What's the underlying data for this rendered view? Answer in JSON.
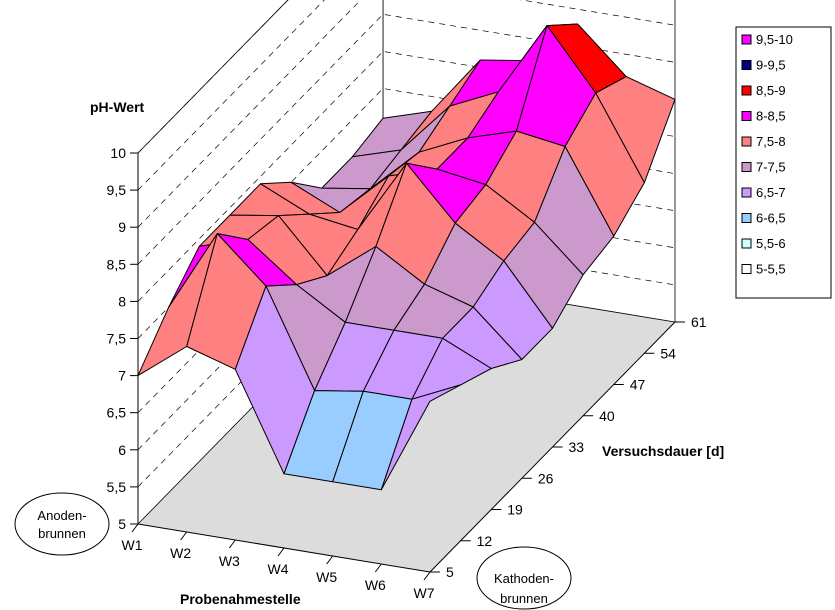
{
  "chart_data": {
    "type": "surface",
    "z_title": "pH-Wert",
    "x_title": "Probenahmestelle",
    "y_title": "Versuchsdauer [d]",
    "x_categories": [
      "W1",
      "W2",
      "W3",
      "W4",
      "W5",
      "W6",
      "W7"
    ],
    "y_categories": [
      "5",
      "12",
      "19",
      "26",
      "33",
      "40",
      "47",
      "54",
      "61"
    ],
    "z_ticks": [
      "5",
      "5,5",
      "6",
      "6,5",
      "7",
      "7,5",
      "8",
      "8,5",
      "9",
      "9,5",
      "10"
    ],
    "z_range": [
      5,
      10
    ],
    "values": [
      [
        7.0,
        7.5,
        7.9,
        7.9,
        7.9,
        7.5,
        7.0,
        7.0,
        7.1
      ],
      [
        7.5,
        8.6,
        8.1,
        8.0,
        7.6,
        7.2,
        7.1,
        7.2,
        7.3
      ],
      [
        7.3,
        8.0,
        7.6,
        7.3,
        7.5,
        7.8,
        7.7,
        7.9,
        8.1
      ],
      [
        6.0,
        6.7,
        7.2,
        7.8,
        8.5,
        8.0,
        8.0,
        8.2,
        8.2
      ],
      [
        6.0,
        6.8,
        7.2,
        7.4,
        7.8,
        7.9,
        8.2,
        9.2,
        8.8
      ],
      [
        6.0,
        6.8,
        7.2,
        7.2,
        7.4,
        7.5,
        8.1,
        8.4,
        8.2
      ],
      [
        7.3,
        7.1,
        6.9,
        6.6,
        6.6,
        6.9,
        7.0,
        7.3,
        8.0
      ]
    ],
    "legend": [
      {
        "label": "9,5-10",
        "color": "#FF00FF"
      },
      {
        "label": "9-9,5",
        "color": "#000080"
      },
      {
        "label": "8,5-9",
        "color": "#FF0000"
      },
      {
        "label": "8-8,5",
        "color": "#FF00FF"
      },
      {
        "label": "7,5-8",
        "color": "#FF8080"
      },
      {
        "label": "7-7,5",
        "color": "#CC99CC"
      },
      {
        "label": "6,5-7",
        "color": "#CC99FF"
      },
      {
        "label": "6-6,5",
        "color": "#99CCFF"
      },
      {
        "label": "5,5-6",
        "color": "#CCFFFF"
      },
      {
        "label": "5-5,5",
        "color": "#FFFFFF"
      }
    ],
    "legend_position": "top-right",
    "gridlines": true
  },
  "annotations": {
    "anode_line1": "Anoden-",
    "anode_line2": "brunnen",
    "cathode_line1": "Kathoden-",
    "cathode_line2": "brunnen"
  }
}
